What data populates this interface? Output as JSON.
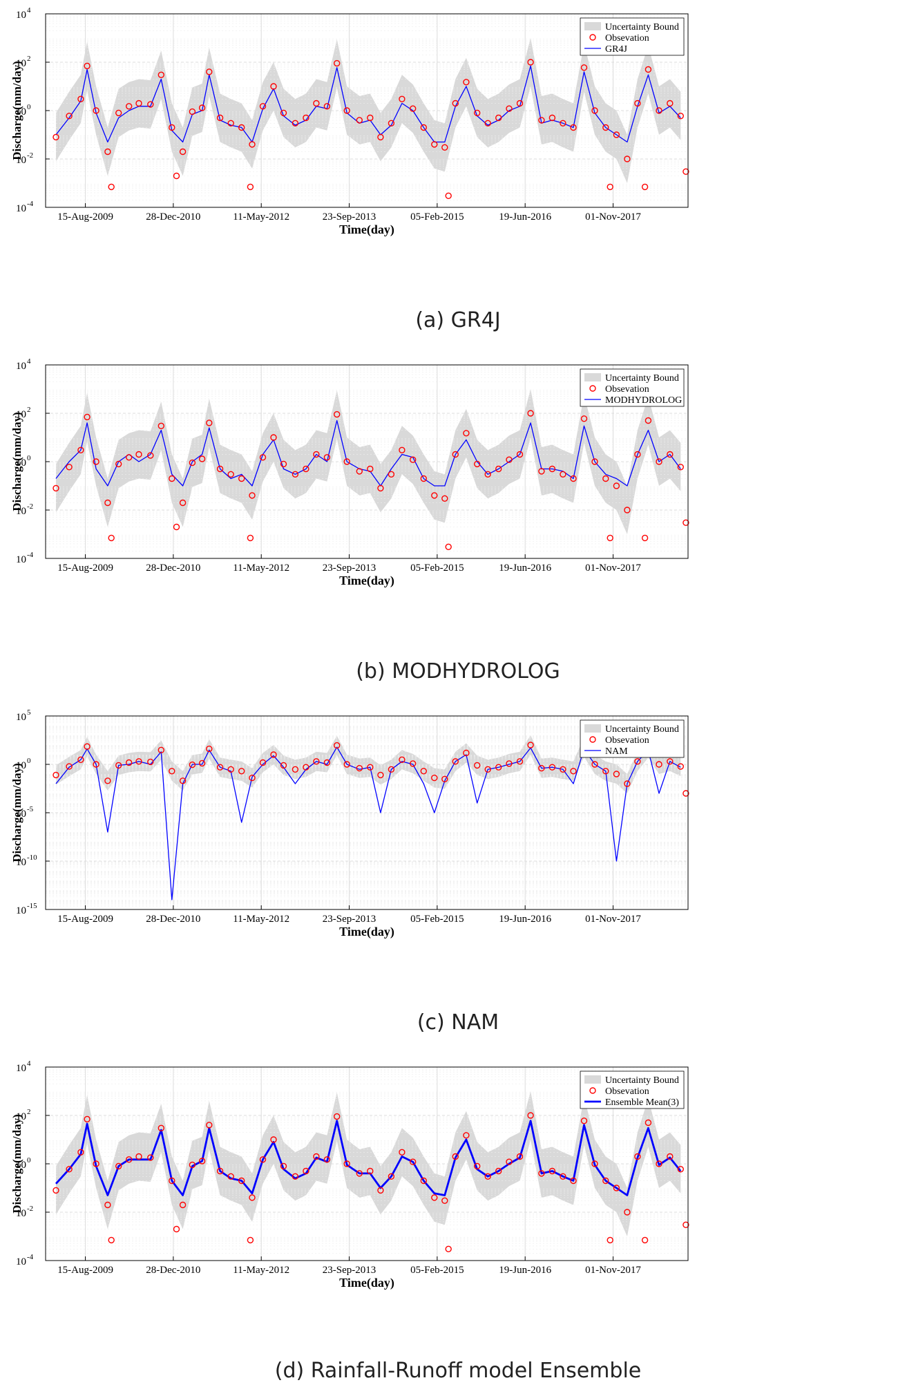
{
  "colors": {
    "band": "#d9d9d9",
    "observation": "#ff0000",
    "model": "#0000ff",
    "grid": "#dcdcdc",
    "axis": "#000000"
  },
  "chart_data": [
    {
      "type": "line",
      "caption": "(a) GR4J",
      "xlabel": "Time(day)",
      "ylabel": "Discharge(mm/day)",
      "y_scale": "log",
      "ylim": [
        0.0001,
        10000
      ],
      "y_ticks": [
        {
          "exp": "-4"
        },
        {
          "exp": "-2"
        },
        {
          "exp": "0"
        },
        {
          "exp": "2"
        },
        {
          "exp": "4"
        }
      ],
      "y_tick_values": [
        0.0001,
        0.01,
        1,
        100,
        10000
      ],
      "xlim": [
        "2009-01-01",
        "2019-01-01"
      ],
      "x_ticks": [
        "15-Aug-2009",
        "28-Dec-2010",
        "11-May-2012",
        "23-Sep-2013",
        "05-Feb-2015",
        "19-Jun-2016",
        "01-Nov-2017"
      ],
      "grid": true,
      "legend_position": "top-right",
      "legend": [
        "Uncertainty Bound",
        "Obsevation",
        "GR4J"
      ],
      "model_style": "thin",
      "series": [
        {
          "name": "Uncertainty Bound",
          "kind": "band",
          "lower_factor": 0.1,
          "upper_factor": 10
        },
        {
          "name": "Obsevation",
          "kind": "markers"
        },
        {
          "name": "GR4J",
          "kind": "line"
        }
      ],
      "dates": [
        "2009-03-01",
        "2009-05-15",
        "2009-07-20",
        "2009-08-25",
        "2009-10-15",
        "2009-12-20",
        "2010-02-20",
        "2010-04-20",
        "2010-06-15",
        "2010-08-20",
        "2010-10-20",
        "2010-12-20",
        "2011-02-20",
        "2011-04-15",
        "2011-06-10",
        "2011-07-20",
        "2011-09-20",
        "2011-11-20",
        "2012-01-20",
        "2012-03-20",
        "2012-05-20",
        "2012-07-20",
        "2012-09-15",
        "2012-11-20",
        "2013-01-20",
        "2013-03-20",
        "2013-05-20",
        "2013-07-15",
        "2013-09-10",
        "2013-11-20",
        "2014-01-20",
        "2014-03-20",
        "2014-05-20",
        "2014-07-20",
        "2014-09-20",
        "2014-11-20",
        "2015-01-20",
        "2015-03-20",
        "2015-05-20",
        "2015-07-20",
        "2015-09-20",
        "2015-11-20",
        "2016-01-20",
        "2016-03-20",
        "2016-05-20",
        "2016-07-20",
        "2016-09-20",
        "2016-11-20",
        "2017-01-20",
        "2017-03-20",
        "2017-05-20",
        "2017-07-20",
        "2017-09-20",
        "2017-11-20",
        "2018-01-20",
        "2018-03-20",
        "2018-05-20",
        "2018-07-20",
        "2018-09-20",
        "2018-11-20"
      ],
      "observed": [
        0.08,
        0.6,
        3,
        70,
        1,
        0.02,
        0.8,
        1.5,
        2,
        1.8,
        30,
        0.2,
        0.02,
        0.9,
        1.3,
        40,
        0.5,
        0.3,
        0.2,
        0.04,
        1.5,
        10,
        0.8,
        0.3,
        0.5,
        2,
        1.5,
        90,
        1,
        0.4,
        0.5,
        0.08,
        0.3,
        3,
        1.2,
        0.2,
        0.04,
        0.03,
        2,
        15,
        0.8,
        0.3,
        0.5,
        1.2,
        2,
        100,
        0.4,
        0.5,
        0.3,
        0.2,
        60,
        1,
        0.2,
        0.1,
        0.01,
        2,
        50,
        1,
        2,
        0.6
      ],
      "modeled": [
        0.1,
        0.5,
        2.5,
        50,
        0.8,
        0.05,
        0.5,
        1,
        1.5,
        1.5,
        20,
        0.15,
        0.05,
        0.7,
        1,
        30,
        0.4,
        0.25,
        0.2,
        0.05,
        1.2,
        8,
        0.6,
        0.25,
        0.4,
        1.5,
        1.2,
        60,
        0.8,
        0.3,
        0.4,
        0.1,
        0.25,
        2,
        1,
        0.2,
        0.05,
        0.05,
        1.5,
        10,
        0.6,
        0.25,
        0.4,
        1,
        1.5,
        70,
        0.3,
        0.4,
        0.3,
        0.2,
        40,
        0.8,
        0.2,
        0.1,
        0.05,
        1.5,
        30,
        0.8,
        1.5,
        0.5
      ],
      "outliers": [
        {
          "date": "2010-01-10",
          "value": 0.0007
        },
        {
          "date": "2011-01-15",
          "value": 0.002
        },
        {
          "date": "2012-03-10",
          "value": 0.0007
        },
        {
          "date": "2015-04-10",
          "value": 0.0003
        },
        {
          "date": "2017-10-15",
          "value": 0.0007
        },
        {
          "date": "2018-05-01",
          "value": 0.0007
        },
        {
          "date": "2018-12-20",
          "value": 0.003
        }
      ]
    },
    {
      "type": "line",
      "caption": "(b) MODHYDROLOG",
      "xlabel": "Time(day)",
      "ylabel": "Discharge(mm/day)",
      "y_scale": "log",
      "ylim": [
        0.0001,
        10000
      ],
      "y_ticks": [
        {
          "exp": "-4"
        },
        {
          "exp": "-2"
        },
        {
          "exp": "0"
        },
        {
          "exp": "2"
        },
        {
          "exp": "4"
        }
      ],
      "y_tick_values": [
        0.0001,
        0.01,
        1,
        100,
        10000
      ],
      "xlim": [
        "2009-01-01",
        "2019-01-01"
      ],
      "x_ticks": [
        "15-Aug-2009",
        "28-Dec-2010",
        "11-May-2012",
        "23-Sep-2013",
        "05-Feb-2015",
        "19-Jun-2016",
        "01-Nov-2017"
      ],
      "grid": true,
      "legend_position": "top-right",
      "legend": [
        "Uncertainty Bound",
        "Obsevation",
        "MODHYDROLOG"
      ],
      "model_style": "thin",
      "series": [
        {
          "name": "Uncertainty Bound",
          "kind": "band",
          "lower_factor": 0.1,
          "upper_factor": 10
        },
        {
          "name": "Obsevation",
          "kind": "markers"
        },
        {
          "name": "MODHYDROLOG",
          "kind": "line"
        }
      ],
      "dates": [
        "2009-03-01",
        "2009-05-15",
        "2009-07-20",
        "2009-08-25",
        "2009-10-15",
        "2009-12-20",
        "2010-02-20",
        "2010-04-20",
        "2010-06-15",
        "2010-08-20",
        "2010-10-20",
        "2010-12-20",
        "2011-02-20",
        "2011-04-15",
        "2011-06-10",
        "2011-07-20",
        "2011-09-20",
        "2011-11-20",
        "2012-01-20",
        "2012-03-20",
        "2012-05-20",
        "2012-07-20",
        "2012-09-15",
        "2012-11-20",
        "2013-01-20",
        "2013-03-20",
        "2013-05-20",
        "2013-07-15",
        "2013-09-10",
        "2013-11-20",
        "2014-01-20",
        "2014-03-20",
        "2014-05-20",
        "2014-07-20",
        "2014-09-20",
        "2014-11-20",
        "2015-01-20",
        "2015-03-20",
        "2015-05-20",
        "2015-07-20",
        "2015-09-20",
        "2015-11-20",
        "2016-01-20",
        "2016-03-20",
        "2016-05-20",
        "2016-07-20",
        "2016-09-20",
        "2016-11-20",
        "2017-01-20",
        "2017-03-20",
        "2017-05-20",
        "2017-07-20",
        "2017-09-20",
        "2017-11-20",
        "2018-01-20",
        "2018-03-20",
        "2018-05-20",
        "2018-07-20",
        "2018-09-20",
        "2018-11-20"
      ],
      "observed": [
        0.08,
        0.6,
        3,
        70,
        1,
        0.02,
        0.8,
        1.5,
        2,
        1.8,
        30,
        0.2,
        0.02,
        0.9,
        1.3,
        40,
        0.5,
        0.3,
        0.2,
        0.04,
        1.5,
        10,
        0.8,
        0.3,
        0.5,
        2,
        1.5,
        90,
        1,
        0.4,
        0.5,
        0.08,
        0.3,
        3,
        1.2,
        0.2,
        0.04,
        0.03,
        2,
        15,
        0.8,
        0.3,
        0.5,
        1.2,
        2,
        100,
        0.4,
        0.5,
        0.3,
        0.2,
        60,
        1,
        0.2,
        0.1,
        0.01,
        2,
        50,
        1,
        2,
        0.6
      ],
      "modeled": [
        0.2,
        1,
        3,
        40,
        0.5,
        0.1,
        1,
        2,
        1,
        2,
        20,
        0.3,
        0.1,
        1,
        2,
        25,
        0.5,
        0.2,
        0.3,
        0.1,
        2,
        8,
        0.5,
        0.3,
        0.5,
        2,
        1,
        50,
        1,
        0.5,
        0.4,
        0.1,
        0.5,
        2,
        1.5,
        0.2,
        0.1,
        0.1,
        2,
        8,
        1,
        0.3,
        0.5,
        1,
        2,
        40,
        0.5,
        0.5,
        0.4,
        0.2,
        30,
        1,
        0.3,
        0.2,
        0.1,
        2,
        20,
        1,
        2,
        0.5
      ],
      "outliers": [
        {
          "date": "2010-01-10",
          "value": 0.0007
        },
        {
          "date": "2011-01-15",
          "value": 0.002
        },
        {
          "date": "2012-03-10",
          "value": 0.0007
        },
        {
          "date": "2015-04-10",
          "value": 0.0003
        },
        {
          "date": "2017-10-15",
          "value": 0.0007
        },
        {
          "date": "2018-05-01",
          "value": 0.0007
        },
        {
          "date": "2018-12-20",
          "value": 0.003
        }
      ]
    },
    {
      "type": "line",
      "caption": "(c) NAM",
      "xlabel": "Time(day)",
      "ylabel": "Discharge(mm/day)",
      "y_scale": "log",
      "ylim": [
        1e-15,
        100000
      ],
      "y_ticks": [
        {
          "exp": "-15"
        },
        {
          "exp": "-10"
        },
        {
          "exp": "-5"
        },
        {
          "exp": "0"
        },
        {
          "exp": "5"
        }
      ],
      "y_tick_values": [
        1e-15,
        1e-10,
        1e-05,
        1,
        100000
      ],
      "xlim": [
        "2009-01-01",
        "2019-01-01"
      ],
      "x_ticks": [
        "15-Aug-2009",
        "28-Dec-2010",
        "11-May-2012",
        "23-Sep-2013",
        "05-Feb-2015",
        "19-Jun-2016",
        "01-Nov-2017"
      ],
      "grid": true,
      "legend_position": "top-right",
      "legend": [
        "Uncertainty Bound",
        "Obsevation",
        "NAM"
      ],
      "model_style": "thin",
      "series": [
        {
          "name": "Uncertainty Bound",
          "kind": "band",
          "lower_factor": 0.1,
          "upper_factor": 10
        },
        {
          "name": "Obsevation",
          "kind": "markers"
        },
        {
          "name": "NAM",
          "kind": "line"
        }
      ],
      "dates": [
        "2009-03-01",
        "2009-05-15",
        "2009-07-20",
        "2009-08-25",
        "2009-10-15",
        "2009-12-20",
        "2010-02-20",
        "2010-04-20",
        "2010-06-15",
        "2010-08-20",
        "2010-10-20",
        "2010-12-20",
        "2011-02-20",
        "2011-04-15",
        "2011-06-10",
        "2011-07-20",
        "2011-09-20",
        "2011-11-20",
        "2012-01-20",
        "2012-03-20",
        "2012-05-20",
        "2012-07-20",
        "2012-09-15",
        "2012-11-20",
        "2013-01-20",
        "2013-03-20",
        "2013-05-20",
        "2013-07-15",
        "2013-09-10",
        "2013-11-20",
        "2014-01-20",
        "2014-03-20",
        "2014-05-20",
        "2014-07-20",
        "2014-09-20",
        "2014-11-20",
        "2015-01-20",
        "2015-03-20",
        "2015-05-20",
        "2015-07-20",
        "2015-09-20",
        "2015-11-20",
        "2016-01-20",
        "2016-03-20",
        "2016-05-20",
        "2016-07-20",
        "2016-09-20",
        "2016-11-20",
        "2017-01-20",
        "2017-03-20",
        "2017-05-20",
        "2017-07-20",
        "2017-09-20",
        "2017-11-20",
        "2018-01-20",
        "2018-03-20",
        "2018-05-20",
        "2018-07-20",
        "2018-09-20",
        "2018-11-20"
      ],
      "observed": [
        0.08,
        0.6,
        3,
        70,
        1,
        0.02,
        0.8,
        1.5,
        2,
        1.8,
        30,
        0.2,
        0.02,
        0.9,
        1.3,
        40,
        0.5,
        0.3,
        0.2,
        0.04,
        1.5,
        10,
        0.8,
        0.3,
        0.5,
        2,
        1.5,
        90,
        1,
        0.4,
        0.5,
        0.08,
        0.3,
        3,
        1.2,
        0.2,
        0.04,
        0.03,
        2,
        15,
        0.8,
        0.3,
        0.5,
        1.2,
        2,
        100,
        0.4,
        0.5,
        0.3,
        0.2,
        60,
        1,
        0.2,
        0.1,
        0.01,
        2,
        50,
        1,
        2,
        0.6
      ],
      "modeled": [
        0.01,
        0.5,
        3,
        40,
        1,
        1e-07,
        0.8,
        1,
        2,
        1,
        20,
        1e-14,
        0.01,
        1,
        1,
        30,
        0.5,
        0.2,
        1e-06,
        0.05,
        1,
        8,
        0.5,
        0.01,
        0.3,
        2,
        1,
        60,
        1,
        0.3,
        0.5,
        1e-05,
        0.3,
        2,
        1,
        0.01,
        1e-05,
        0.02,
        2,
        10,
        0.0001,
        0.3,
        0.5,
        1,
        2,
        50,
        0.4,
        0.5,
        0.3,
        0.01,
        40,
        1,
        0.2,
        1e-10,
        0.01,
        2,
        30,
        0.001,
        2,
        0.5
      ],
      "outliers": [
        {
          "date": "2018-12-20",
          "value": 0.001
        }
      ]
    },
    {
      "type": "line",
      "caption": "(d) Rainfall-Runoff model Ensemble",
      "xlabel": "Time(day)",
      "ylabel": "Discharge(mm/day)",
      "y_scale": "log",
      "ylim": [
        0.0001,
        10000
      ],
      "y_ticks": [
        {
          "exp": "-4"
        },
        {
          "exp": "-2"
        },
        {
          "exp": "0"
        },
        {
          "exp": "2"
        },
        {
          "exp": "4"
        }
      ],
      "y_tick_values": [
        0.0001,
        0.01,
        1,
        100,
        10000
      ],
      "xlim": [
        "2009-01-01",
        "2019-01-01"
      ],
      "x_ticks": [
        "15-Aug-2009",
        "28-Dec-2010",
        "11-May-2012",
        "23-Sep-2013",
        "05-Feb-2015",
        "19-Jun-2016",
        "01-Nov-2017"
      ],
      "grid": true,
      "legend_position": "top-right",
      "legend": [
        "Uncertainty Bound",
        "Obsevation",
        "Ensemble Mean(3)"
      ],
      "model_style": "thick",
      "series": [
        {
          "name": "Uncertainty Bound",
          "kind": "band",
          "lower_factor": 0.1,
          "upper_factor": 10
        },
        {
          "name": "Obsevation",
          "kind": "markers"
        },
        {
          "name": "Ensemble Mean(3)",
          "kind": "line"
        }
      ],
      "dates": [
        "2009-03-01",
        "2009-05-15",
        "2009-07-20",
        "2009-08-25",
        "2009-10-15",
        "2009-12-20",
        "2010-02-20",
        "2010-04-20",
        "2010-06-15",
        "2010-08-20",
        "2010-10-20",
        "2010-12-20",
        "2011-02-20",
        "2011-04-15",
        "2011-06-10",
        "2011-07-20",
        "2011-09-20",
        "2011-11-20",
        "2012-01-20",
        "2012-03-20",
        "2012-05-20",
        "2012-07-20",
        "2012-09-15",
        "2012-11-20",
        "2013-01-20",
        "2013-03-20",
        "2013-05-20",
        "2013-07-15",
        "2013-09-10",
        "2013-11-20",
        "2014-01-20",
        "2014-03-20",
        "2014-05-20",
        "2014-07-20",
        "2014-09-20",
        "2014-11-20",
        "2015-01-20",
        "2015-03-20",
        "2015-05-20",
        "2015-07-20",
        "2015-09-20",
        "2015-11-20",
        "2016-01-20",
        "2016-03-20",
        "2016-05-20",
        "2016-07-20",
        "2016-09-20",
        "2016-11-20",
        "2017-01-20",
        "2017-03-20",
        "2017-05-20",
        "2017-07-20",
        "2017-09-20",
        "2017-11-20",
        "2018-01-20",
        "2018-03-20",
        "2018-05-20",
        "2018-07-20",
        "2018-09-20",
        "2018-11-20"
      ],
      "observed": [
        0.08,
        0.6,
        3,
        70,
        1,
        0.02,
        0.8,
        1.5,
        2,
        1.8,
        30,
        0.2,
        0.02,
        0.9,
        1.3,
        40,
        0.5,
        0.3,
        0.2,
        0.04,
        1.5,
        10,
        0.8,
        0.3,
        0.5,
        2,
        1.5,
        90,
        1,
        0.4,
        0.5,
        0.08,
        0.3,
        3,
        1.2,
        0.2,
        0.04,
        0.03,
        2,
        15,
        0.8,
        0.3,
        0.5,
        1.2,
        2,
        100,
        0.4,
        0.5,
        0.3,
        0.2,
        60,
        1,
        0.2,
        0.1,
        0.01,
        2,
        50,
        1,
        2,
        0.6
      ],
      "modeled": [
        0.15,
        0.6,
        2.5,
        45,
        0.8,
        0.05,
        0.8,
        1.5,
        1.5,
        1.5,
        25,
        0.2,
        0.05,
        0.8,
        1.3,
        30,
        0.5,
        0.25,
        0.2,
        0.06,
        1.5,
        8,
        0.6,
        0.25,
        0.4,
        1.8,
        1.2,
        60,
        0.9,
        0.4,
        0.4,
        0.1,
        0.3,
        2,
        1.2,
        0.2,
        0.06,
        0.05,
        1.8,
        10,
        0.6,
        0.3,
        0.5,
        1,
        1.8,
        60,
        0.4,
        0.5,
        0.3,
        0.2,
        40,
        0.9,
        0.2,
        0.1,
        0.05,
        1.8,
        30,
        0.9,
        1.8,
        0.5
      ],
      "outliers": [
        {
          "date": "2010-01-10",
          "value": 0.0007
        },
        {
          "date": "2011-01-15",
          "value": 0.002
        },
        {
          "date": "2012-03-10",
          "value": 0.0007
        },
        {
          "date": "2015-04-10",
          "value": 0.0003
        },
        {
          "date": "2017-10-15",
          "value": 0.0007
        },
        {
          "date": "2018-05-01",
          "value": 0.0007
        },
        {
          "date": "2018-12-20",
          "value": 0.003
        }
      ]
    }
  ]
}
